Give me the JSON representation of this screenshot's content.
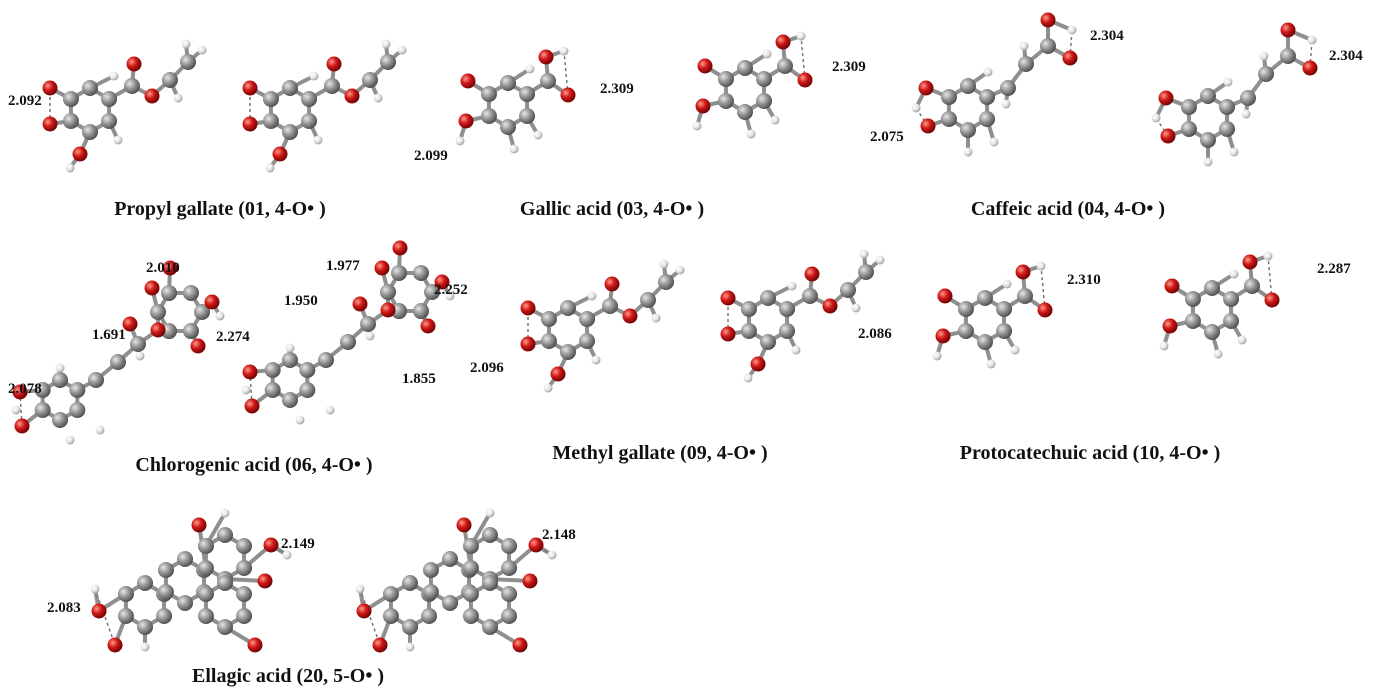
{
  "figure": {
    "captions": {
      "propyl_gallate": "Propyl gallate (01, 4-O• )",
      "gallic_acid": "Gallic acid (03, 4-O• )",
      "caffeic_acid": "Caffeic acid (04, 4-O• )",
      "chlorogenic_acid": "Chlorogenic acid (06, 4-O• )",
      "methyl_gallate": "Methyl gallate (09, 4-O• )",
      "protocatechuic_acid": "Protocatechuic acid (10, 4-O• )",
      "ellagic_acid": "Ellagic acid (20, 5-O• )"
    },
    "distances": {
      "propyl_gallate": [
        "2.092"
      ],
      "gallic_acid": [
        "2.309",
        "2.099",
        "2.309"
      ],
      "caffeic_acid": [
        "2.304",
        "2.075",
        "2.304"
      ],
      "chlorogenic_acid": [
        "2.010",
        "1.691",
        "2.274",
        "2.078",
        "1.977",
        "1.950",
        "2.252",
        "1.855"
      ],
      "methyl_gallate": [
        "2.096"
      ],
      "protocatechuic_acid": [
        "2.310",
        "2.086",
        "2.287"
      ],
      "ellagic_acid": [
        "2.149",
        "2.083",
        "2.148"
      ]
    },
    "atom_colors": {
      "carbon": "#8c8c8c",
      "oxygen": "#d01818",
      "hydrogen": "#e8e8e8"
    }
  }
}
